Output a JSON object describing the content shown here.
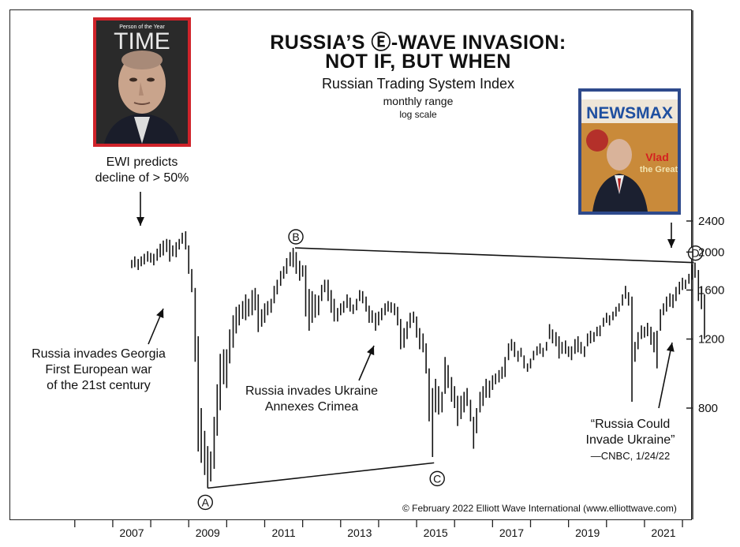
{
  "title_line1": "RUSSIA’S Ⓔ-WAVE INVASION:",
  "title_line2": "NOT IF, BUT WHEN",
  "subtitle": "Russian Trading System Index",
  "subtitle2": "monthly range",
  "subtitle3": "log scale",
  "annotations": {
    "ewi_line1": "EWI predicts",
    "ewi_line2": "decline of > 50%",
    "georgia_line1": "Russia invades Georgia",
    "georgia_line2": "First European war",
    "georgia_line3": "of the 21st century",
    "ukraine_line1": "Russia invades Ukraine",
    "ukraine_line2": "Annexes Crimea",
    "cnbc_line1": "“Russia Could",
    "cnbc_line2": "Invade Ukraine”",
    "cnbc_line3": "—CNBC, 1/24/22"
  },
  "wave_labels": [
    "A",
    "B",
    "C",
    "D"
  ],
  "copyright": "© February 2022 Elliott Wave International (www.elliottwave.com)",
  "covers": {
    "time_header": "Person of the Year",
    "time_logo": "TIME",
    "newsmax_logo": "NEWSMAX",
    "newsmax_headline1": "Vlad",
    "newsmax_headline2": "the Great"
  },
  "colors": {
    "frame": "#222222",
    "bars": "#111111",
    "time_red": "#d0232a",
    "newsmax_blue": "#2e4a8c"
  },
  "chart_data": {
    "type": "bar",
    "subtype": "ohlc-range",
    "scale": "log",
    "title": "RUSSIA’S Ⓔ-WAVE INVASION: NOT IF, BUT WHEN",
    "subtitle": "Russian Trading System Index",
    "y_ticks": [
      800,
      1200,
      1600,
      2000,
      2400
    ],
    "x_ticks": [
      "2007",
      "2009",
      "2011",
      "2013",
      "2015",
      "2017",
      "2019",
      "2021"
    ],
    "ylim": [
      470,
      2700
    ],
    "x_range": [
      2006.0,
      2022.1
    ],
    "grid": false,
    "wave_points": [
      {
        "label": "A",
        "date": 2009.0,
        "value": 500
      },
      {
        "label": "B",
        "date": 2011.3,
        "value": 2050
      },
      {
        "label": "C",
        "date": 2014.96,
        "value": 580
      },
      {
        "label": "D",
        "date": 2021.8,
        "value": 1880
      }
    ],
    "series": [
      {
        "name": "",
        "bars": [
          [
            2007.0,
            1820,
            1910
          ],
          [
            2007.08,
            1830,
            1950
          ],
          [
            2007.17,
            1800,
            1920
          ],
          [
            2007.25,
            1840,
            1950
          ],
          [
            2007.33,
            1860,
            1980
          ],
          [
            2007.42,
            1890,
            2010
          ],
          [
            2007.5,
            1880,
            1990
          ],
          [
            2007.58,
            1850,
            1980
          ],
          [
            2007.67,
            1900,
            2040
          ],
          [
            2007.75,
            1940,
            2100
          ],
          [
            2007.83,
            1960,
            2140
          ],
          [
            2007.92,
            2000,
            2160
          ],
          [
            2008.0,
            1890,
            2150
          ],
          [
            2008.08,
            1950,
            2080
          ],
          [
            2008.17,
            1940,
            2120
          ],
          [
            2008.25,
            2030,
            2160
          ],
          [
            2008.33,
            2100,
            2240
          ],
          [
            2008.42,
            2030,
            2260
          ],
          [
            2008.5,
            1760,
            2080
          ],
          [
            2008.58,
            1580,
            1810
          ],
          [
            2008.67,
            1050,
            1620
          ],
          [
            2008.75,
            620,
            1220
          ],
          [
            2008.83,
            580,
            800
          ],
          [
            2008.92,
            540,
            700
          ],
          [
            2009.0,
            500,
            640
          ],
          [
            2009.08,
            520,
            620
          ],
          [
            2009.17,
            560,
            760
          ],
          [
            2009.25,
            680,
            920
          ],
          [
            2009.33,
            790,
            1100
          ],
          [
            2009.42,
            920,
            1130
          ],
          [
            2009.5,
            900,
            1130
          ],
          [
            2009.58,
            1040,
            1270
          ],
          [
            2009.67,
            1140,
            1380
          ],
          [
            2009.75,
            1240,
            1450
          ],
          [
            2009.83,
            1300,
            1470
          ],
          [
            2009.92,
            1350,
            1500
          ],
          [
            2010.0,
            1340,
            1560
          ],
          [
            2010.08,
            1370,
            1520
          ],
          [
            2010.17,
            1380,
            1600
          ],
          [
            2010.25,
            1420,
            1620
          ],
          [
            2010.33,
            1250,
            1560
          ],
          [
            2010.42,
            1290,
            1430
          ],
          [
            2010.5,
            1320,
            1480
          ],
          [
            2010.58,
            1380,
            1500
          ],
          [
            2010.67,
            1400,
            1520
          ],
          [
            2010.75,
            1480,
            1640
          ],
          [
            2010.83,
            1560,
            1700
          ],
          [
            2010.92,
            1640,
            1790
          ],
          [
            2011.0,
            1710,
            1840
          ],
          [
            2011.08,
            1760,
            1930
          ],
          [
            2011.17,
            1840,
            2000
          ],
          [
            2011.25,
            1830,
            2050
          ],
          [
            2011.33,
            1760,
            2000
          ],
          [
            2011.42,
            1690,
            1900
          ],
          [
            2011.5,
            1730,
            1850
          ],
          [
            2011.58,
            1370,
            1850
          ],
          [
            2011.67,
            1260,
            1610
          ],
          [
            2011.75,
            1320,
            1590
          ],
          [
            2011.83,
            1360,
            1560
          ],
          [
            2011.92,
            1380,
            1550
          ],
          [
            2012.0,
            1500,
            1650
          ],
          [
            2012.08,
            1580,
            1700
          ],
          [
            2012.17,
            1500,
            1700
          ],
          [
            2012.25,
            1400,
            1600
          ],
          [
            2012.33,
            1330,
            1520
          ],
          [
            2012.42,
            1330,
            1440
          ],
          [
            2012.5,
            1380,
            1480
          ],
          [
            2012.58,
            1400,
            1500
          ],
          [
            2012.67,
            1440,
            1560
          ],
          [
            2012.75,
            1410,
            1530
          ],
          [
            2012.83,
            1390,
            1470
          ],
          [
            2012.92,
            1420,
            1520
          ],
          [
            2013.0,
            1500,
            1600
          ],
          [
            2013.08,
            1480,
            1590
          ],
          [
            2013.17,
            1410,
            1540
          ],
          [
            2013.25,
            1320,
            1460
          ],
          [
            2013.33,
            1320,
            1420
          ],
          [
            2013.42,
            1260,
            1400
          ],
          [
            2013.5,
            1300,
            1410
          ],
          [
            2013.58,
            1340,
            1440
          ],
          [
            2013.67,
            1380,
            1480
          ],
          [
            2013.75,
            1410,
            1500
          ],
          [
            2013.83,
            1400,
            1490
          ],
          [
            2013.92,
            1380,
            1480
          ],
          [
            2014.0,
            1300,
            1450
          ],
          [
            2014.08,
            1130,
            1350
          ],
          [
            2014.17,
            1140,
            1280
          ],
          [
            2014.25,
            1200,
            1330
          ],
          [
            2014.33,
            1280,
            1400
          ],
          [
            2014.42,
            1320,
            1410
          ],
          [
            2014.5,
            1210,
            1370
          ],
          [
            2014.58,
            1130,
            1280
          ],
          [
            2014.67,
            1110,
            1240
          ],
          [
            2014.75,
            980,
            1170
          ],
          [
            2014.83,
            740,
            1010
          ],
          [
            2014.92,
            600,
            900
          ],
          [
            2015.0,
            780,
            950
          ],
          [
            2015.08,
            770,
            910
          ],
          [
            2015.17,
            780,
            880
          ],
          [
            2015.25,
            870,
            1080
          ],
          [
            2015.33,
            900,
            1030
          ],
          [
            2015.42,
            830,
            960
          ],
          [
            2015.5,
            800,
            910
          ],
          [
            2015.58,
            720,
            860
          ],
          [
            2015.67,
            750,
            860
          ],
          [
            2015.75,
            780,
            880
          ],
          [
            2015.83,
            810,
            900
          ],
          [
            2015.92,
            740,
            840
          ],
          [
            2016.0,
            630,
            760
          ],
          [
            2016.08,
            690,
            800
          ],
          [
            2016.17,
            780,
            880
          ],
          [
            2016.25,
            810,
            910
          ],
          [
            2016.33,
            850,
            950
          ],
          [
            2016.42,
            850,
            940
          ],
          [
            2016.5,
            890,
            970
          ],
          [
            2016.58,
            920,
            980
          ],
          [
            2016.67,
            930,
            1000
          ],
          [
            2016.75,
            950,
            1020
          ],
          [
            2016.83,
            960,
            1080
          ],
          [
            2016.92,
            1060,
            1170
          ],
          [
            2017.0,
            1120,
            1200
          ],
          [
            2017.08,
            1080,
            1180
          ],
          [
            2017.17,
            1050,
            1120
          ],
          [
            2017.25,
            1080,
            1140
          ],
          [
            2017.33,
            1010,
            1090
          ],
          [
            2017.42,
            990,
            1040
          ],
          [
            2017.5,
            1010,
            1070
          ],
          [
            2017.58,
            1060,
            1120
          ],
          [
            2017.67,
            1090,
            1150
          ],
          [
            2017.75,
            1100,
            1170
          ],
          [
            2017.83,
            1080,
            1140
          ],
          [
            2017.92,
            1120,
            1180
          ],
          [
            2018.0,
            1200,
            1310
          ],
          [
            2018.08,
            1170,
            1270
          ],
          [
            2018.17,
            1150,
            1250
          ],
          [
            2018.25,
            1070,
            1220
          ],
          [
            2018.33,
            1100,
            1180
          ],
          [
            2018.42,
            1100,
            1190
          ],
          [
            2018.5,
            1080,
            1150
          ],
          [
            2018.58,
            1060,
            1150
          ],
          [
            2018.67,
            1100,
            1200
          ],
          [
            2018.75,
            1110,
            1220
          ],
          [
            2018.83,
            1100,
            1180
          ],
          [
            2018.92,
            1080,
            1150
          ],
          [
            2019.0,
            1150,
            1240
          ],
          [
            2019.08,
            1170,
            1260
          ],
          [
            2019.17,
            1180,
            1250
          ],
          [
            2019.25,
            1220,
            1290
          ],
          [
            2019.33,
            1220,
            1300
          ],
          [
            2019.42,
            1290,
            1360
          ],
          [
            2019.5,
            1320,
            1400
          ],
          [
            2019.58,
            1300,
            1380
          ],
          [
            2019.67,
            1340,
            1410
          ],
          [
            2019.75,
            1370,
            1450
          ],
          [
            2019.83,
            1410,
            1480
          ],
          [
            2019.92,
            1460,
            1560
          ],
          [
            2020.0,
            1520,
            1640
          ],
          [
            2020.08,
            1460,
            1580
          ],
          [
            2020.17,
            830,
            1540
          ],
          [
            2020.25,
            1050,
            1180
          ],
          [
            2020.33,
            1130,
            1250
          ],
          [
            2020.42,
            1200,
            1300
          ],
          [
            2020.5,
            1210,
            1290
          ],
          [
            2020.58,
            1220,
            1320
          ],
          [
            2020.67,
            1160,
            1290
          ],
          [
            2020.75,
            1110,
            1250
          ],
          [
            2020.83,
            1010,
            1260
          ],
          [
            2020.92,
            1260,
            1430
          ],
          [
            2021.0,
            1380,
            1480
          ],
          [
            2021.08,
            1410,
            1540
          ],
          [
            2021.17,
            1450,
            1570
          ],
          [
            2021.25,
            1440,
            1560
          ],
          [
            2021.33,
            1500,
            1630
          ],
          [
            2021.42,
            1560,
            1680
          ],
          [
            2021.5,
            1600,
            1720
          ],
          [
            2021.58,
            1610,
            1700
          ],
          [
            2021.67,
            1660,
            1760
          ],
          [
            2021.75,
            1700,
            1860
          ],
          [
            2021.83,
            1720,
            1880
          ],
          [
            2021.92,
            1500,
            1800
          ],
          [
            2022.0,
            1430,
            1630
          ],
          [
            2022.08,
            1200,
            1560
          ]
        ]
      }
    ]
  }
}
